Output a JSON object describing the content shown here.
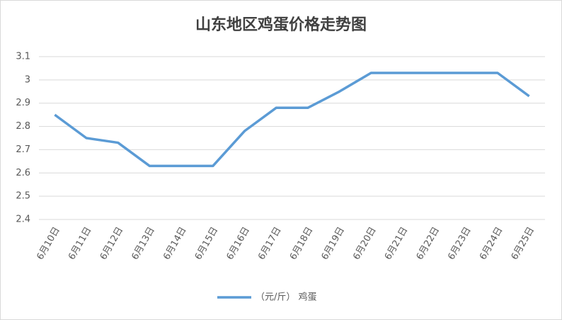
{
  "chart_data": {
    "type": "line",
    "title": "山东地区鸡蛋价格走势图",
    "categories": [
      "6月10日",
      "6月11日",
      "6月12日",
      "6月13日",
      "6月14日",
      "6月15日",
      "6月16日",
      "6月17日",
      "6月18日",
      "6月19日",
      "6月20日",
      "6月21日",
      "6月22日",
      "6月23日",
      "6月24日",
      "6月25日"
    ],
    "series": [
      {
        "name": "（元/斤） 鸡蛋",
        "color": "#5b9bd5",
        "values": [
          2.85,
          2.75,
          2.73,
          2.63,
          2.63,
          2.63,
          2.78,
          2.88,
          2.88,
          2.95,
          3.03,
          3.03,
          3.03,
          3.03,
          3.03,
          2.93
        ]
      }
    ],
    "ylim": [
      2.4,
      3.1
    ],
    "yticks": [
      2.4,
      2.5,
      2.6,
      2.7,
      2.8,
      2.9,
      3,
      3.1
    ],
    "grid": true,
    "legend": "bottom"
  }
}
